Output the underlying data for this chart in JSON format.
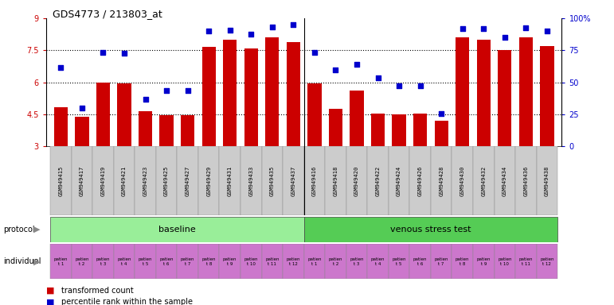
{
  "title": "GDS4773 / 213803_at",
  "gsm_labels": [
    "GSM949415",
    "GSM949417",
    "GSM949419",
    "GSM949421",
    "GSM949423",
    "GSM949425",
    "GSM949427",
    "GSM949429",
    "GSM949431",
    "GSM949433",
    "GSM949435",
    "GSM949437",
    "GSM949416",
    "GSM949418",
    "GSM949420",
    "GSM949422",
    "GSM949424",
    "GSM949426",
    "GSM949428",
    "GSM949430",
    "GSM949432",
    "GSM949434",
    "GSM949436",
    "GSM949438"
  ],
  "bar_heights": [
    4.85,
    4.4,
    6.0,
    5.95,
    4.65,
    4.45,
    4.45,
    7.65,
    8.0,
    7.6,
    8.1,
    7.9,
    5.95,
    4.75,
    5.6,
    4.55,
    4.5,
    4.55,
    4.2,
    8.1,
    8.0,
    7.5,
    8.1,
    7.7
  ],
  "blue_dot_y": [
    6.7,
    4.8,
    7.4,
    7.35,
    5.2,
    5.6,
    5.6,
    8.4,
    8.45,
    8.25,
    8.6,
    8.7,
    7.4,
    6.6,
    6.85,
    6.2,
    5.85,
    5.85,
    4.55,
    8.5,
    8.5,
    8.1,
    8.55,
    8.4
  ],
  "ylim": [
    3,
    9
  ],
  "yticks_left": [
    3,
    4.5,
    6,
    7.5,
    9
  ],
  "yticks_right": [
    0,
    25,
    50,
    75,
    100
  ],
  "ytick_labels_right": [
    "0",
    "25",
    "50",
    "75",
    "100%"
  ],
  "dotted_lines": [
    4.5,
    6.0,
    7.5
  ],
  "bar_color": "#cc0000",
  "dot_color": "#0000cc",
  "bar_width": 0.65,
  "baseline_count": 12,
  "protocol_colors": [
    "#99ee99",
    "#55cc55"
  ],
  "individual_color": "#cc77cc",
  "bg_color": "#ffffff",
  "gsm_bg_color": "#cccccc",
  "legend_bar_label": "transformed count",
  "legend_dot_label": "percentile rank within the sample"
}
